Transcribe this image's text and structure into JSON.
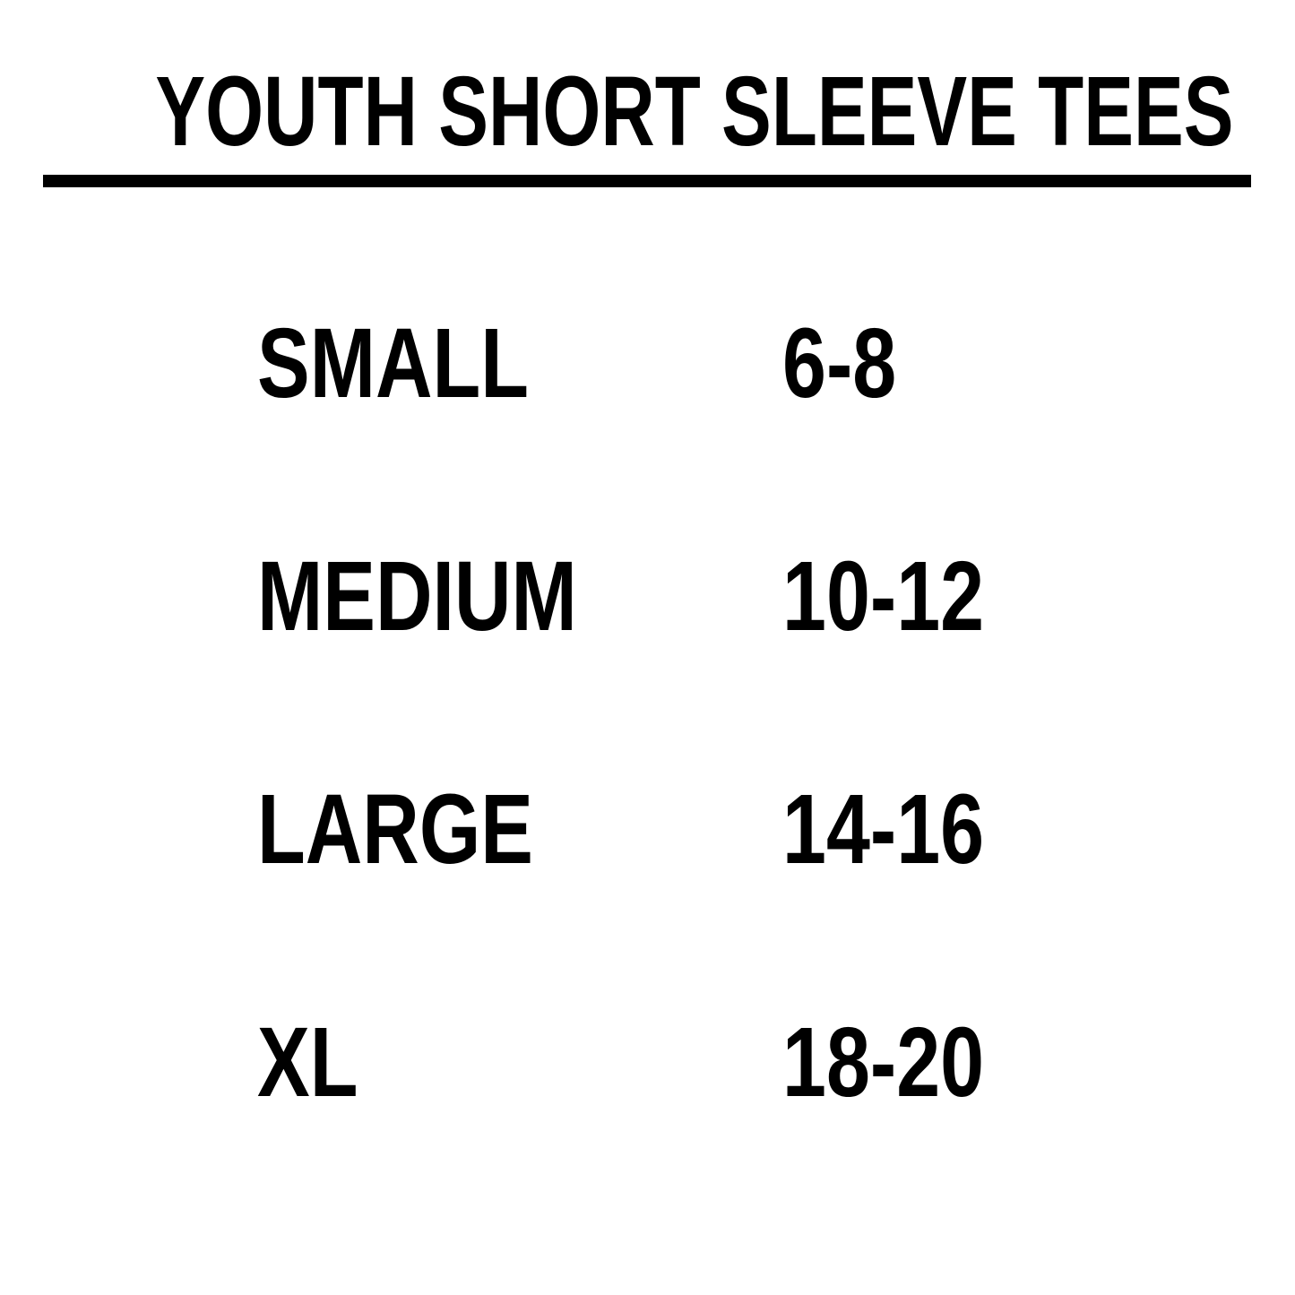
{
  "title": "YOUTH SHORT SLEEVE TEES",
  "sizes": [
    {
      "size": "SMALL",
      "range": "6-8"
    },
    {
      "size": "MEDIUM",
      "range": "10-12"
    },
    {
      "size": "LARGE",
      "range": "14-16"
    },
    {
      "size": "XL",
      "range": "18-20"
    }
  ]
}
